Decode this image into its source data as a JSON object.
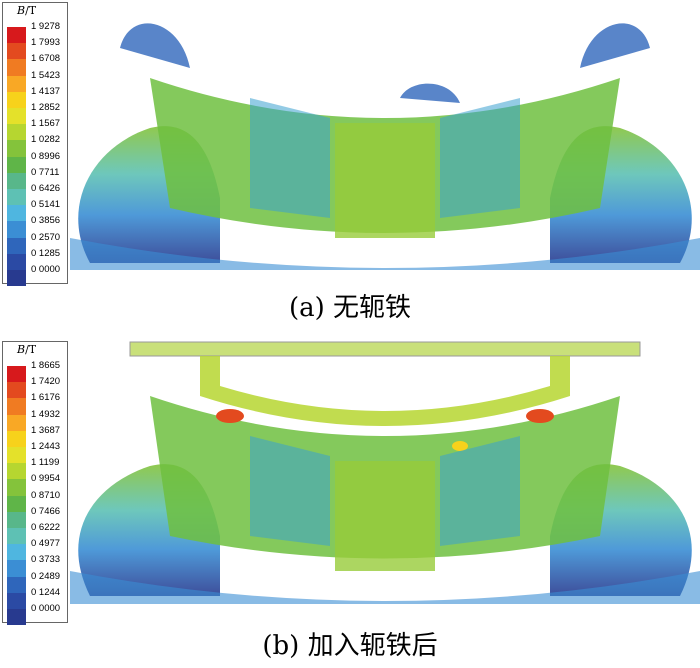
{
  "panels": [
    {
      "id": "a",
      "caption": "(a)  无轭铁",
      "legend": {
        "title_sym": "B",
        "title_unit": "/T",
        "values": [
          "1 9278",
          "1 7993",
          "1 6708",
          "1 5423",
          "1 4137",
          "1 2852",
          "1 1567",
          "1 0282",
          "0 8996",
          "0 7711",
          "0 6426",
          "0 5141",
          "0 3856",
          "0 2570",
          "0 1285",
          "0 0000"
        ]
      }
    },
    {
      "id": "b",
      "caption": "(b)  加入轭铁后",
      "legend": {
        "title_sym": "B",
        "title_unit": "/T",
        "values": [
          "1 8665",
          "1 7420",
          "1 6176",
          "1 4932",
          "1 3687",
          "1 2443",
          "1 1199",
          "0 9954",
          "0 8710",
          "0 7466",
          "0 6222",
          "0 4977",
          "0 3733",
          "0 2489",
          "0 1244",
          "0 0000"
        ]
      }
    }
  ],
  "colors": {
    "scale": [
      "#d7191c",
      "#e34a1f",
      "#f07b22",
      "#f9a825",
      "#f7d21b",
      "#e4e12a",
      "#b6d630",
      "#84c33b",
      "#5fb548",
      "#58b78a",
      "#5ec1b4",
      "#4fb6e0",
      "#3b8ed4",
      "#2f66bb",
      "#2b4aa4",
      "#283a8f"
    ]
  }
}
